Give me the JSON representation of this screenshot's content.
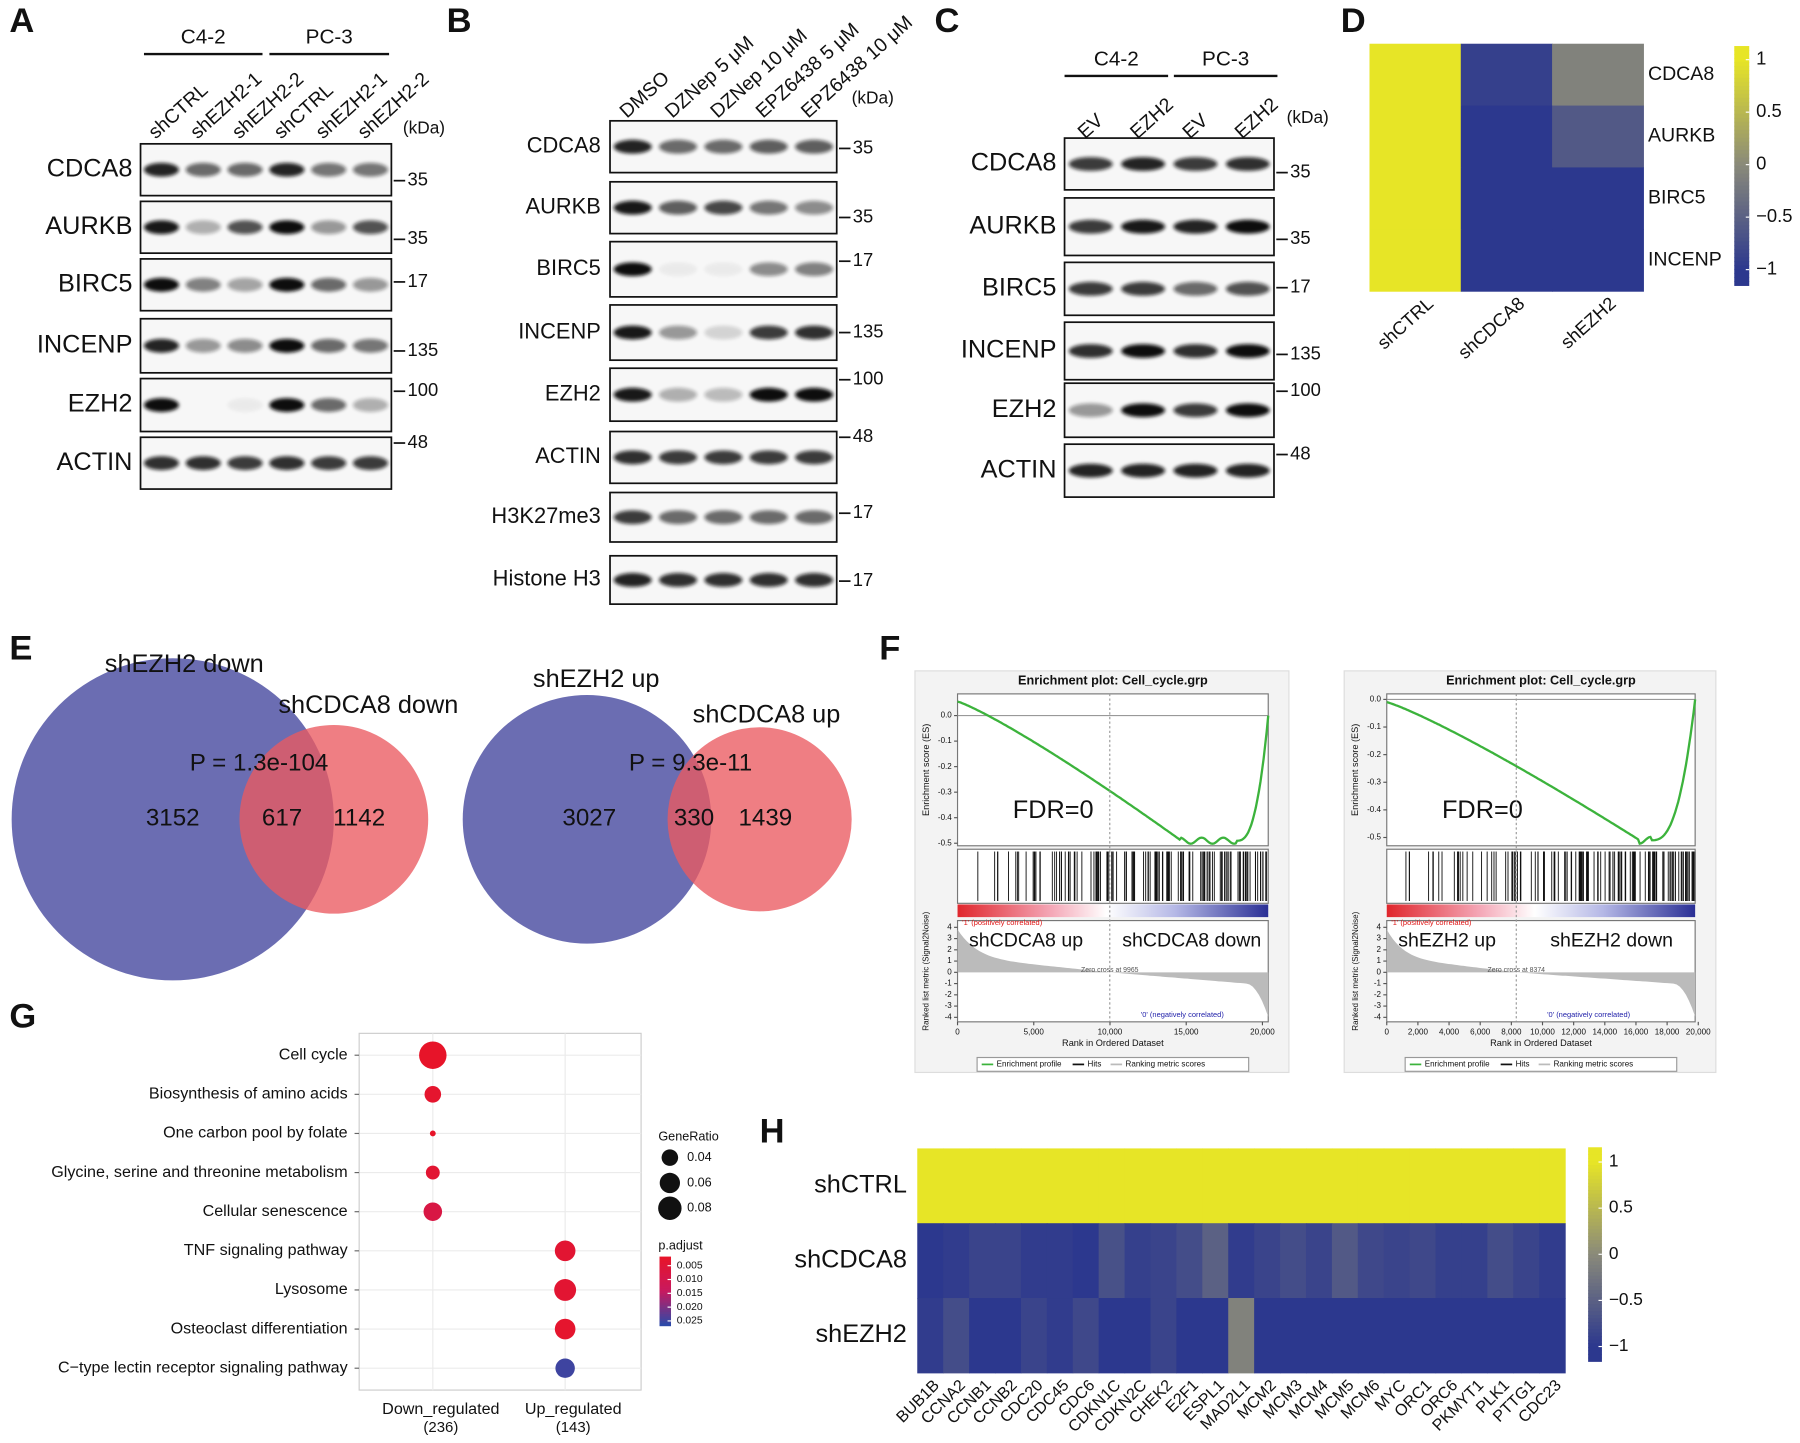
{
  "panel_labels": [
    "A",
    "B",
    "C",
    "D",
    "E",
    "F",
    "G",
    "H"
  ],
  "panel_a": {
    "groups": [
      "C4-2",
      "PC-3"
    ],
    "lanes": [
      "shCTRL",
      "shEZH2-1",
      "shEZH2-2",
      "shCTRL",
      "shEZH2-1",
      "shEZH2-2"
    ],
    "unit": "(kDa)",
    "rows": [
      {
        "protein": "CDCA8",
        "marker": 35
      },
      {
        "protein": "AURKB",
        "marker": 35
      },
      {
        "protein": "BIRC5",
        "marker": 17
      },
      {
        "protein": "INCENP",
        "marker": 135
      },
      {
        "protein": "EZH2",
        "marker": 100
      },
      {
        "protein": "ACTIN",
        "marker": 48
      }
    ]
  },
  "panel_b": {
    "lanes": [
      "DMSO",
      "DZNep 5 μM",
      "DZNep 10 μM",
      "EPZ6438 5 μM",
      "EPZ6438 10 μM"
    ],
    "unit": "(kDa)",
    "rows": [
      {
        "protein": "CDCA8",
        "marker": 35
      },
      {
        "protein": "AURKB",
        "marker": 35
      },
      {
        "protein": "BIRC5",
        "marker": 17
      },
      {
        "protein": "INCENP",
        "marker": 135
      },
      {
        "protein": "EZH2",
        "marker": 100
      },
      {
        "protein": "ACTIN",
        "marker": 48
      },
      {
        "protein": "H3K27me3",
        "marker": 17
      },
      {
        "protein": "Histone H3",
        "marker": 17
      }
    ]
  },
  "panel_c": {
    "groups": [
      "C4-2",
      "PC-3"
    ],
    "lanes": [
      "EV",
      "EZH2",
      "EV",
      "EZH2"
    ],
    "unit": "(kDa)",
    "rows": [
      {
        "protein": "CDCA8",
        "marker": 35
      },
      {
        "protein": "AURKB",
        "marker": 35
      },
      {
        "protein": "BIRC5",
        "marker": 17
      },
      {
        "protein": "INCENP",
        "marker": 135
      },
      {
        "protein": "EZH2",
        "marker": 100
      },
      {
        "protein": "ACTIN",
        "marker": 48
      }
    ]
  },
  "panel_d": {
    "type": "heatmap",
    "rows": [
      "CDCA8",
      "AURKB",
      "BIRC5",
      "INCENP"
    ],
    "columns": [
      "shCTRL",
      "shCDCA8",
      "shEZH2"
    ],
    "values": [
      [
        1,
        -0.9,
        -0.1
      ],
      [
        1,
        -1,
        -0.6
      ],
      [
        1,
        -1,
        -1
      ],
      [
        1,
        -1,
        -1
      ]
    ],
    "clim": [
      -1.15,
      1.13
    ],
    "ticks": [
      1,
      0.5,
      0,
      {
        "value": -0.5,
        "label": "−0.5"
      },
      {
        "value": -1,
        "label": "−1"
      }
    ]
  },
  "panel_e": {
    "venns": [
      {
        "set_a": "shEZH2 down",
        "set_b": "shCDCA8 down",
        "p_value": "P = 1.3e-104",
        "only_a": 3152,
        "both": 617,
        "only_b": 1142
      },
      {
        "set_a": "shEZH2 up",
        "set_b": "shCDCA8 up",
        "p_value": "P = 9.3e-11",
        "only_a": 3027,
        "both": 330,
        "only_b": 1439
      }
    ]
  },
  "panel_f": {
    "plots": [
      {
        "title": "Enrichment plot: Cell_cycle.grp",
        "es_label": "Enrichment score (ES)",
        "metric_label": "Ranked list metric (Signal2Noise)",
        "x_label": "Rank in Ordered Dataset",
        "fdr": "FDR=0",
        "pos_label": "'1' (positively correlated)",
        "neg_label": "'0' (negatively correlated)",
        "zero_cross": "Zero cross at 9965",
        "up": "shCDCA8 up",
        "down": "shCDCA8 down",
        "xlim": [
          0,
          20380
        ],
        "xticks": [
          0,
          {
            "value": 5000,
            "label": "5,000"
          },
          {
            "value": 10000,
            "label": "10,000"
          },
          {
            "value": 15000,
            "label": "15,000"
          },
          {
            "value": 20000,
            "label": "20,000"
          }
        ],
        "es_ylim": [
          -0.51,
          0.085
        ],
        "es_ticks": [
          {
            "value": 0,
            "label": "0.0"
          },
          -0.1,
          -0.2,
          -0.3,
          -0.4,
          -0.5
        ],
        "metric_ylim": [
          -4.4,
          4.6
        ],
        "metric_ticks": [
          4,
          3,
          2,
          1,
          0,
          -1,
          -2,
          -3,
          -4
        ],
        "legend": [
          "Enrichment profile",
          "Hits",
          "Ranking metric scores"
        ]
      },
      {
        "title": "Enrichment plot: Cell_cycle.grp",
        "es_label": "Enrichment score (ES)",
        "metric_label": "Ranked list metric (Signal2Noise)",
        "x_label": "Rank in Ordered Dataset",
        "fdr": "FDR=0",
        "pos_label": "'1' (positively correlated)",
        "neg_label": "'0' (negatively correlated)",
        "zero_cross": "Zero cross at 8374",
        "up": "shEZH2 up",
        "down": "shEZH2 down",
        "xlim": [
          0,
          19800
        ],
        "xticks": [
          0,
          {
            "value": 2000,
            "label": "2,000"
          },
          {
            "value": 4000,
            "label": "4,000"
          },
          {
            "value": 6000,
            "label": "6,000"
          },
          {
            "value": 8000,
            "label": "8,000"
          },
          {
            "value": 10000,
            "label": "10,000"
          },
          {
            "value": 12000,
            "label": "12,000"
          },
          {
            "value": 14000,
            "label": "14,000"
          },
          {
            "value": 16000,
            "label": "16,000"
          },
          {
            "value": 18000,
            "label": "18,000"
          },
          {
            "value": 20000,
            "label": "20,000"
          }
        ],
        "es_ylim": [
          -0.53,
          0.02
        ],
        "es_ticks": [
          {
            "value": 0,
            "label": "0.0"
          },
          -0.1,
          -0.2,
          -0.3,
          -0.4,
          -0.5
        ],
        "metric_ylim": [
          -4.4,
          4.6
        ],
        "metric_ticks": [
          4,
          3,
          2,
          1,
          0,
          -1,
          -2,
          -3,
          -4
        ],
        "legend": [
          "Enrichment profile",
          "Hits",
          "Ranking metric scores"
        ]
      }
    ]
  },
  "panel_g": {
    "type": "dot",
    "categories": [
      "Cell cycle",
      "Biosynthesis of amino acids",
      "One carbon pool by folate",
      "Glycine, serine and threonine metabolism",
      "Cellular senescence",
      "TNF signaling pathway",
      "Lysosome",
      "Osteoclast differentiation",
      "C−type lectin receptor signaling pathway"
    ],
    "series": [
      {
        "name": "Down_regulated",
        "count": "(236)",
        "gene_ratio": [
          0.11,
          0.04,
          0.005,
          0.028,
          0.05,
          null,
          null,
          null,
          null
        ],
        "p_adjust": [
          0.002,
          0.003,
          0.002,
          0.004,
          0.008,
          null,
          null,
          null,
          null
        ]
      },
      {
        "name": "Up_regulated",
        "count": "(143)",
        "gene_ratio": [
          null,
          null,
          null,
          null,
          null,
          0.062,
          0.07,
          0.062,
          0.055
        ],
        "p_adjust": [
          null,
          null,
          null,
          null,
          null,
          0.004,
          0.004,
          0.003,
          0.025
        ]
      }
    ],
    "size_title": "GeneRatio",
    "size_ticks": [
      0.04,
      0.06,
      0.08
    ],
    "color_title": "p.adjust",
    "color_lim": [
      0.0017,
      0.0267
    ],
    "color_ticks": [
      0.005,
      {
        "value": 0.01,
        "label": "0.010"
      },
      0.015,
      {
        "value": 0.02,
        "label": "0.020"
      },
      0.025
    ]
  },
  "panel_h": {
    "type": "heatmap",
    "rows": [
      "shCTRL",
      "shCDCA8",
      "shEZH2"
    ],
    "columns": [
      "BUB1B",
      "CCNA2",
      "CCNB1",
      "CCNB2",
      "CDC20",
      "CDC45",
      "CDC6",
      "CDKN1C",
      "CDKN2C",
      "CHEK2",
      "E2F1",
      "ESPL1",
      "MAD2L1",
      "MCM2",
      "MCM3",
      "MCM4",
      "MCM5",
      "MCM6",
      "MYC",
      "ORC1",
      "ORC6",
      "PKMYT1",
      "PLK1",
      "PTTG1",
      "CDC23"
    ],
    "values": [
      [
        1,
        1,
        1,
        1,
        1,
        1,
        1,
        1,
        1,
        1,
        1,
        1,
        1,
        1,
        1,
        1,
        1,
        1,
        1,
        1,
        1,
        1,
        1,
        1,
        1
      ],
      [
        -1,
        -0.95,
        -0.85,
        -0.85,
        -0.95,
        -0.95,
        -1,
        -0.7,
        -0.9,
        -0.85,
        -0.75,
        -0.5,
        -0.95,
        -0.85,
        -0.75,
        -0.85,
        -0.6,
        -0.8,
        -0.85,
        -0.8,
        -0.9,
        -0.9,
        -0.75,
        -0.85,
        -0.95
      ],
      [
        -0.95,
        -0.75,
        -1,
        -1,
        -0.85,
        -0.95,
        -0.8,
        -1,
        -1,
        -0.85,
        -1,
        -1,
        -0.1,
        -1,
        -1,
        -1,
        -1,
        -1,
        -1,
        -1,
        -1,
        -1,
        -1,
        -1,
        -1
      ]
    ],
    "clim": [
      -1.16,
      1.16
    ],
    "ticks": [
      1,
      0.5,
      0,
      {
        "value": -0.5,
        "label": "−0.5"
      },
      {
        "value": -1,
        "label": "−1"
      }
    ]
  }
}
